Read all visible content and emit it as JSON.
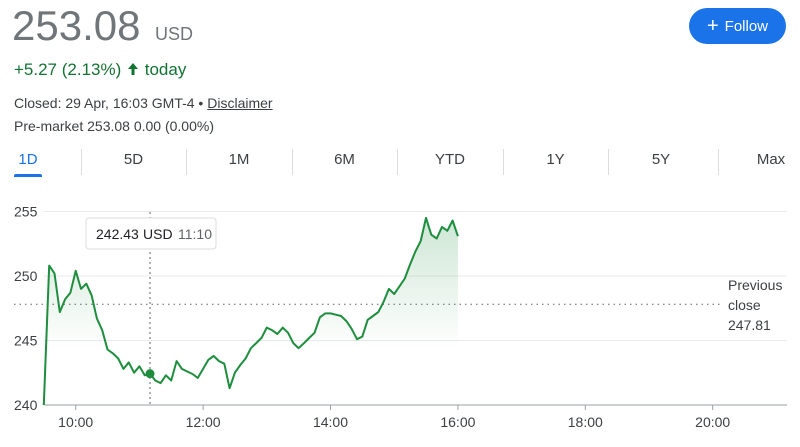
{
  "header": {
    "price": "253.08",
    "currency": "USD",
    "change": "+5.27 (2.13%)",
    "period": "today",
    "closed": "Closed: 29 Apr, 16:03 GMT-4 •",
    "disclaimer": "Disclaimer",
    "premarket": "Pre-market 253.08 0.00 (0.00%)",
    "follow": "Follow"
  },
  "tabs": [
    "1D",
    "5D",
    "1M",
    "6M",
    "YTD",
    "1Y",
    "5Y",
    "Max"
  ],
  "chart_data": {
    "type": "line",
    "color": "#1e8e3e",
    "x": [
      570,
      575,
      580,
      585,
      590,
      595,
      600,
      605,
      610,
      615,
      620,
      625,
      630,
      635,
      640,
      645,
      650,
      655,
      660,
      665,
      670,
      675,
      680,
      685,
      690,
      695,
      700,
      705,
      710,
      715,
      720,
      725,
      730,
      735,
      740,
      745,
      750,
      755,
      760,
      765,
      770,
      775,
      780,
      785,
      790,
      795,
      800,
      805,
      810,
      815,
      820,
      825,
      830,
      835,
      840,
      845,
      850,
      855,
      860,
      865,
      870,
      875,
      880,
      885,
      890,
      895,
      900,
      905,
      910,
      915,
      920,
      925,
      930,
      935,
      940,
      945,
      950,
      955,
      960
    ],
    "values": [
      240.0,
      250.8,
      250.2,
      247.2,
      248.2,
      248.7,
      250.4,
      249.0,
      249.4,
      248.5,
      246.7,
      245.8,
      244.3,
      244.0,
      243.6,
      242.8,
      243.3,
      242.5,
      243.0,
      242.3,
      242.43,
      241.9,
      241.7,
      242.3,
      241.9,
      243.4,
      242.8,
      242.6,
      242.4,
      242.1,
      242.8,
      243.5,
      243.8,
      243.4,
      243.2,
      241.3,
      242.5,
      243.1,
      243.6,
      244.4,
      244.8,
      245.2,
      246.0,
      245.8,
      245.5,
      246.0,
      245.6,
      244.8,
      244.4,
      244.8,
      245.2,
      245.6,
      246.8,
      247.1,
      247.1,
      247.0,
      246.9,
      246.5,
      245.9,
      245.1,
      245.3,
      246.6,
      246.9,
      247.2,
      248.0,
      249.0,
      248.6,
      249.2,
      249.8,
      250.9,
      251.9,
      252.7,
      254.5,
      253.2,
      252.9,
      253.8,
      253.5,
      254.3,
      253.08
    ],
    "xlim": [
      540,
      1270
    ],
    "ylim": [
      240,
      255.5
    ],
    "xticks": [
      {
        "value": 600,
        "label": "10:00"
      },
      {
        "value": 720,
        "label": "12:00"
      },
      {
        "value": 840,
        "label": "14:00"
      },
      {
        "value": 960,
        "label": "16:00"
      },
      {
        "value": 1080,
        "label": "18:00"
      },
      {
        "value": 1200,
        "label": "20:00"
      }
    ],
    "yticks": [
      240,
      245,
      250,
      255
    ],
    "grid": true,
    "previous_close": {
      "label": [
        "Previous",
        "close"
      ],
      "value": 247.81
    },
    "tooltip": {
      "index": 20,
      "value": 242.43,
      "unit": "USD",
      "time": "11:10"
    }
  }
}
